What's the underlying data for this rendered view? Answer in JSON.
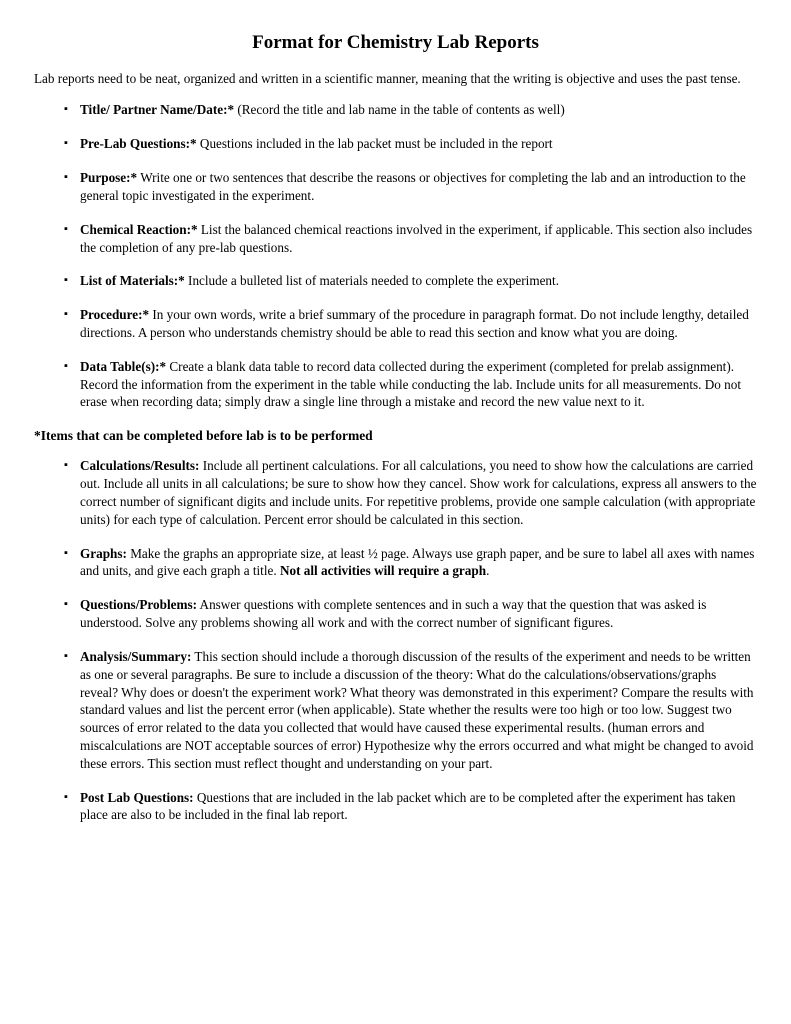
{
  "title": "Format for Chemistry Lab Reports",
  "intro": "Lab reports need to be neat, organized and written in a scientific manner, meaning that the writing is objective and uses the past tense.",
  "prelab_items": [
    {
      "label": "Title/ Partner Name/Date:*",
      "body": "  (Record the title and lab name in the table of contents as well)"
    },
    {
      "label": "Pre-Lab Questions:*",
      "body": " Questions included in the lab packet must be included in the report"
    },
    {
      "label": "Purpose:*",
      "body": " Write one or two sentences that describe the reasons or objectives for completing the lab and an introduction to the general topic investigated in the experiment."
    },
    {
      "label": "Chemical Reaction:*",
      "body": " List the balanced chemical reactions involved in the experiment, if applicable. This section also includes the completion of any pre-lab questions."
    },
    {
      "label": "List of Materials:*",
      "body": " Include a bulleted list of materials needed to complete the experiment."
    },
    {
      "label": "Procedure:*",
      "body": " In your own words, write a brief summary of the procedure in paragraph format. Do not include lengthy, detailed directions. A person who understands chemistry should be able to read this section and know what you are doing."
    },
    {
      "label": "Data Table(s):*",
      "body": " Create a blank data table to record data collected during the experiment (completed for prelab assignment).  Record the information from the experiment in the table while conducting the lab.  Include units for all measurements.  Do not erase when recording data; simply draw a single line through a mistake and record the new value next to it."
    }
  ],
  "note": "*Items that can be completed before lab is to be performed",
  "postlab_items": [
    {
      "label": "Calculations/Results:",
      "body": "  Include all pertinent calculations.  For all calculations, you need to show how the calculations are carried out. Include all units in all calculations; be sure to show how they cancel.  Show work for calculations, express all answers to the correct number of significant digits and include units.  For repetitive problems, provide one sample calculation (with appropriate units) for each type of calculation.  Percent error should be calculated in this section."
    },
    {
      "label": "Graphs:",
      "body_before_bold": " Make the graphs an appropriate size, at least ½ page. Always use graph paper, and be sure to label all axes with names and units, and give each graph a title. ",
      "bold_tail": "Not all activities will require a graph",
      "body_after_bold": "."
    },
    {
      "label": "Questions/Problems:",
      "body": " Answer questions with complete sentences and in such a way that the question that was asked is understood. Solve any problems showing all work and with the correct number of significant figures."
    },
    {
      "label": "Analysis/Summary:",
      "body": " This section should include a thorough discussion of the results of the experiment and needs to be written as one or several paragraphs. Be sure to include a discussion of the theory: What do the calculations/observations/graphs reveal? Why does or doesn't the experiment work? What theory was demonstrated in this experiment? Compare the results with standard values and list the percent error (when applicable). State whether the results were too high or too low.  Suggest two sources of error related to the data you collected that would have caused these experimental results.  (human errors and miscalculations are NOT acceptable sources of error) Hypothesize why the errors occurred and what might be changed to avoid these errors. This section must reflect thought and understanding on your part."
    },
    {
      "label": "Post Lab Questions:",
      "body": " Questions that are included in the lab packet which are to be completed after the experiment has taken place are also to be included in the final lab report."
    }
  ]
}
